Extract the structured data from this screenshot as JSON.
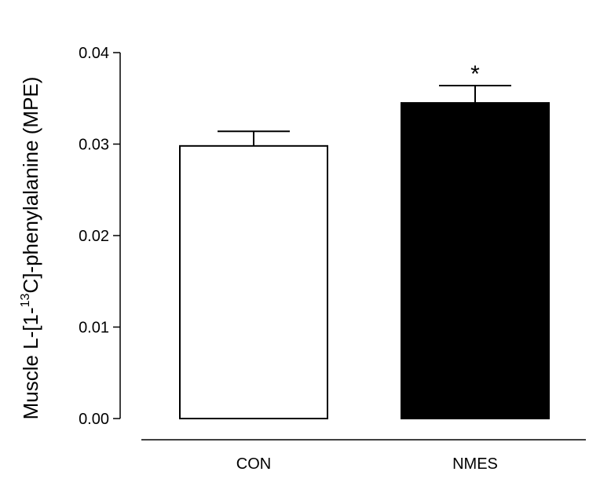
{
  "chart_data": {
    "type": "bar",
    "categories": [
      "CON",
      "NMES"
    ],
    "values": [
      0.0298,
      0.0345
    ],
    "errors": [
      0.0016,
      0.0019
    ],
    "significance": [
      "",
      "*"
    ],
    "bar_colors": [
      "#ffffff",
      "#000000"
    ],
    "edge_color": "#000000",
    "title": "",
    "xlabel": "",
    "ylabel": {
      "prefix": "Muscle L-[1-",
      "superscript": "13",
      "suffix": "C]-phenylalanine (MPE)"
    },
    "ylim": [
      0,
      0.04
    ],
    "yticks": [
      0.0,
      0.01,
      0.02,
      0.03,
      0.04
    ],
    "ytick_labels": [
      "0.00",
      "0.01",
      "0.02",
      "0.03",
      "0.04"
    ],
    "grid": false,
    "legend": "none"
  }
}
